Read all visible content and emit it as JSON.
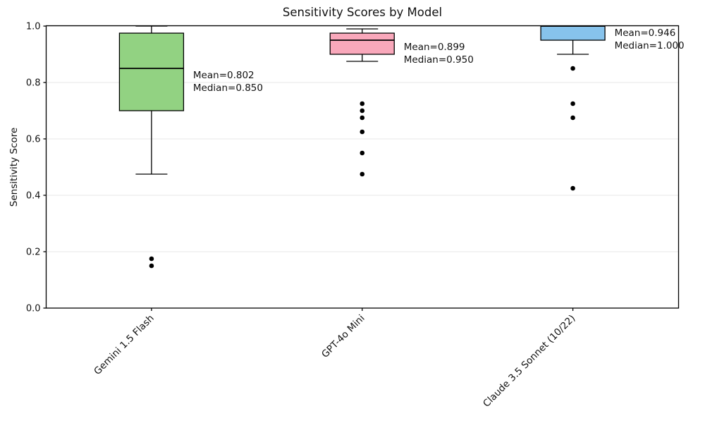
{
  "chart_data": {
    "type": "boxplot",
    "title": "Sensitivity Scores by Model",
    "ylabel": "Sensitivity Score",
    "xlabel": "",
    "ylim": [
      0.0,
      1.0
    ],
    "yticks": [
      {
        "value": 0.0,
        "label": "0.0"
      },
      {
        "value": 0.2,
        "label": "0.2"
      },
      {
        "value": 0.4,
        "label": "0.4"
      },
      {
        "value": 0.6,
        "label": "0.6"
      },
      {
        "value": 0.8,
        "label": "0.8"
      },
      {
        "value": 1.0,
        "label": "1.0"
      }
    ],
    "grid": "horizontal",
    "legend": "none",
    "categories": [
      "Gemini 1.5 Flash",
      "GPT-4o Mini",
      "Claude 3.5 Sonnet (10/22)"
    ],
    "series": [
      {
        "name": "Gemini 1.5 Flash",
        "box_color": "#92d282",
        "whisker_low": 0.475,
        "q1": 0.7,
        "median": 0.85,
        "q3": 0.975,
        "whisker_high": 1.0,
        "outliers": [
          0.175,
          0.15
        ],
        "mean": 0.802,
        "annotation_lines": [
          "Mean=0.802",
          "Median=0.850"
        ]
      },
      {
        "name": "GPT-4o Mini",
        "box_color": "#f9a8bb",
        "whisker_low": 0.875,
        "q1": 0.9,
        "median": 0.95,
        "q3": 0.975,
        "whisker_high": 0.99,
        "outliers": [
          0.725,
          0.7,
          0.675,
          0.625,
          0.55,
          0.475
        ],
        "mean": 0.899,
        "annotation_lines": [
          "Mean=0.899",
          "Median=0.950"
        ]
      },
      {
        "name": "Claude 3.5 Sonnet (10/22)",
        "box_color": "#87c3ec",
        "whisker_low": 0.9,
        "q1": 0.95,
        "median": 1.0,
        "q3": 1.0,
        "whisker_high": 1.0,
        "outliers": [
          0.85,
          0.725,
          0.675,
          0.425
        ],
        "mean": 0.946,
        "annotation_lines": [
          "Mean=0.946",
          "Median=1.000"
        ]
      }
    ],
    "colors": {
      "box_edge": "#000000",
      "median_line": "#000000",
      "outlier": "#000000",
      "grid": "#e7e7e7",
      "spine": "#000000",
      "text": "#111111"
    }
  }
}
